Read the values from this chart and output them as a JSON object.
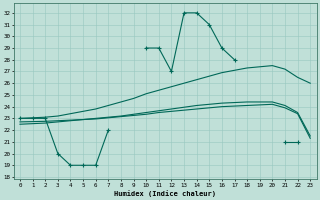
{
  "bg_color": "#c0e0d8",
  "grid_color": "#98c8c0",
  "line_color": "#006858",
  "xlim": [
    -0.5,
    23.5
  ],
  "ylim": [
    17.8,
    32.8
  ],
  "yticks": [
    18,
    19,
    20,
    21,
    22,
    23,
    24,
    25,
    26,
    27,
    28,
    29,
    30,
    31,
    32
  ],
  "xticks": [
    0,
    1,
    2,
    3,
    4,
    5,
    6,
    7,
    8,
    9,
    10,
    11,
    12,
    13,
    14,
    15,
    16,
    17,
    18,
    19,
    20,
    21,
    22,
    23
  ],
  "xlabel": "Humidex (Indice chaleur)",
  "main_x": [
    0,
    1,
    2,
    3,
    4,
    5,
    6,
    7,
    10,
    11,
    12,
    13,
    14,
    15,
    16,
    17,
    21,
    22
  ],
  "main_y": [
    23,
    23,
    23,
    20,
    19,
    19,
    19,
    22,
    29,
    29,
    27,
    32,
    32,
    31,
    29,
    28,
    21,
    21
  ],
  "env1_x": [
    0,
    2,
    3,
    4,
    5,
    6,
    7,
    8,
    9,
    10,
    11,
    12,
    13,
    14,
    15,
    16,
    17,
    18,
    19,
    20,
    21,
    22,
    23
  ],
  "env1_y": [
    23,
    23.1,
    23.2,
    23.4,
    23.6,
    23.8,
    24.1,
    24.4,
    24.7,
    25.1,
    25.4,
    25.7,
    26.0,
    26.3,
    26.6,
    26.9,
    27.1,
    27.3,
    27.4,
    27.5,
    27.2,
    26.5,
    26.0
  ],
  "env2_x": [
    0,
    2,
    3,
    4,
    5,
    6,
    7,
    8,
    9,
    10,
    11,
    12,
    13,
    14,
    15,
    16,
    17,
    18,
    19,
    20,
    21,
    22,
    23
  ],
  "env2_y": [
    22.5,
    22.6,
    22.7,
    22.8,
    22.9,
    23.0,
    23.1,
    23.2,
    23.35,
    23.5,
    23.65,
    23.8,
    23.95,
    24.1,
    24.2,
    24.3,
    24.35,
    24.4,
    24.4,
    24.4,
    24.1,
    23.5,
    21.5
  ],
  "env3_x": [
    0,
    2,
    3,
    4,
    5,
    6,
    7,
    8,
    9,
    10,
    11,
    12,
    13,
    14,
    15,
    16,
    17,
    18,
    19,
    20,
    21,
    22,
    23
  ],
  "env3_y": [
    22.7,
    22.75,
    22.8,
    22.85,
    22.9,
    22.95,
    23.05,
    23.15,
    23.25,
    23.35,
    23.5,
    23.6,
    23.7,
    23.8,
    23.9,
    24.0,
    24.05,
    24.1,
    24.15,
    24.2,
    23.9,
    23.4,
    21.3
  ]
}
